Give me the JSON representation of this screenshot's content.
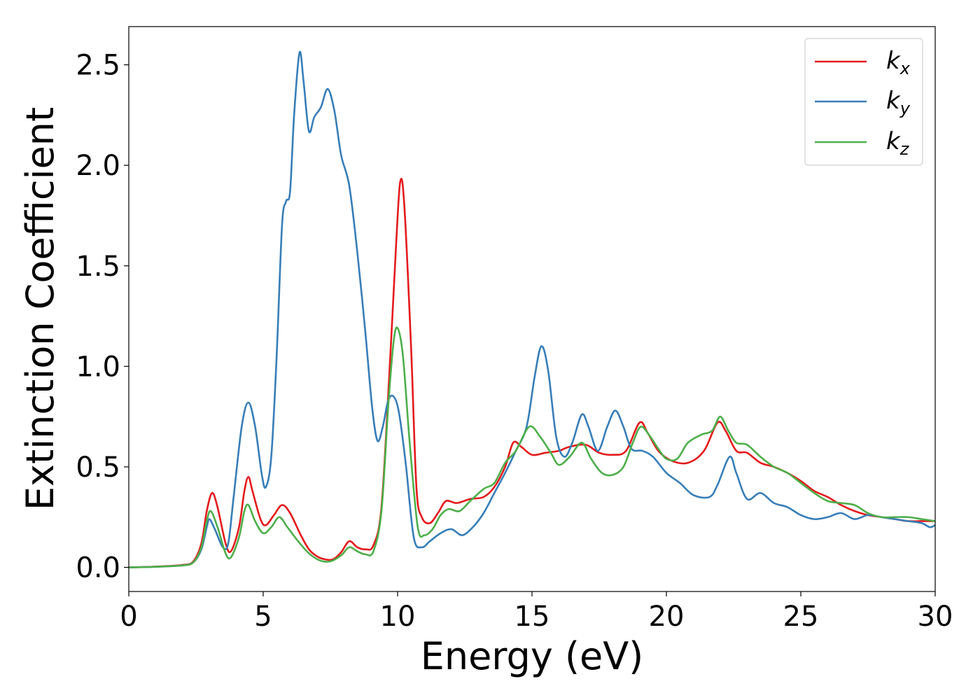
{
  "chart_data": {
    "type": "line",
    "title": "",
    "xlabel": "Energy (eV)",
    "ylabel": "Extinction Coefficient",
    "xlim": [
      0,
      30
    ],
    "ylim": [
      -0.12,
      2.69
    ],
    "xticks": [
      0,
      5,
      10,
      15,
      20,
      25,
      30
    ],
    "xtick_labels": [
      "0",
      "5",
      "10",
      "15",
      "20",
      "25",
      "30"
    ],
    "yticks": [
      0.0,
      0.5,
      1.0,
      1.5,
      2.0,
      2.5
    ],
    "ytick_labels": [
      "0.0",
      "0.5",
      "1.0",
      "1.5",
      "2.0",
      "2.5"
    ],
    "grid": false,
    "legend_position": "top-right",
    "series": [
      {
        "name": "k_x",
        "label_main": "k",
        "label_sub": "x",
        "color": "#e41a1c",
        "points": [
          [
            0,
            0.0
          ],
          [
            1,
            0.004
          ],
          [
            2,
            0.012
          ],
          [
            2.4,
            0.03
          ],
          [
            2.7,
            0.12
          ],
          [
            2.9,
            0.28
          ],
          [
            3.1,
            0.37
          ],
          [
            3.3,
            0.3
          ],
          [
            3.6,
            0.12
          ],
          [
            3.8,
            0.08
          ],
          [
            4.1,
            0.2
          ],
          [
            4.3,
            0.38
          ],
          [
            4.45,
            0.45
          ],
          [
            4.6,
            0.38
          ],
          [
            4.9,
            0.24
          ],
          [
            5.1,
            0.21
          ],
          [
            5.4,
            0.26
          ],
          [
            5.7,
            0.31
          ],
          [
            6.0,
            0.27
          ],
          [
            6.4,
            0.16
          ],
          [
            6.7,
            0.09
          ],
          [
            7.0,
            0.055
          ],
          [
            7.3,
            0.04
          ],
          [
            7.6,
            0.04
          ],
          [
            7.9,
            0.075
          ],
          [
            8.2,
            0.13
          ],
          [
            8.5,
            0.1
          ],
          [
            8.8,
            0.09
          ],
          [
            9.1,
            0.11
          ],
          [
            9.4,
            0.3
          ],
          [
            9.7,
            0.98
          ],
          [
            9.95,
            1.62
          ],
          [
            10.1,
            1.92
          ],
          [
            10.25,
            1.8
          ],
          [
            10.5,
            1.1
          ],
          [
            10.7,
            0.4
          ],
          [
            10.9,
            0.25
          ],
          [
            11.2,
            0.22
          ],
          [
            11.5,
            0.27
          ],
          [
            11.8,
            0.33
          ],
          [
            12.2,
            0.32
          ],
          [
            12.7,
            0.34
          ],
          [
            13.2,
            0.35
          ],
          [
            13.6,
            0.4
          ],
          [
            14.0,
            0.5
          ],
          [
            14.3,
            0.62
          ],
          [
            14.6,
            0.6
          ],
          [
            15.0,
            0.56
          ],
          [
            15.5,
            0.57
          ],
          [
            16.0,
            0.58
          ],
          [
            16.4,
            0.6
          ],
          [
            17.0,
            0.61
          ],
          [
            17.5,
            0.57
          ],
          [
            18.0,
            0.56
          ],
          [
            18.5,
            0.58
          ],
          [
            19.0,
            0.72
          ],
          [
            19.3,
            0.67
          ],
          [
            19.7,
            0.58
          ],
          [
            20.2,
            0.53
          ],
          [
            20.8,
            0.52
          ],
          [
            21.4,
            0.58
          ],
          [
            21.9,
            0.72
          ],
          [
            22.2,
            0.68
          ],
          [
            22.6,
            0.58
          ],
          [
            23.0,
            0.57
          ],
          [
            23.5,
            0.52
          ],
          [
            24.0,
            0.5
          ],
          [
            24.5,
            0.47
          ],
          [
            25.0,
            0.43
          ],
          [
            25.5,
            0.38
          ],
          [
            26.0,
            0.35
          ],
          [
            26.5,
            0.31
          ],
          [
            27.0,
            0.28
          ],
          [
            27.5,
            0.26
          ],
          [
            28.0,
            0.25
          ],
          [
            28.5,
            0.24
          ],
          [
            29.0,
            0.23
          ],
          [
            29.5,
            0.23
          ],
          [
            30.0,
            0.23
          ]
        ]
      },
      {
        "name": "k_y",
        "label_main": "k",
        "label_sub": "y",
        "color": "#377eb8",
        "points": [
          [
            0,
            0.0
          ],
          [
            1,
            0.003
          ],
          [
            2,
            0.01
          ],
          [
            2.4,
            0.025
          ],
          [
            2.7,
            0.09
          ],
          [
            2.9,
            0.2
          ],
          [
            3.0,
            0.24
          ],
          [
            3.2,
            0.19
          ],
          [
            3.5,
            0.1
          ],
          [
            3.7,
            0.12
          ],
          [
            3.9,
            0.35
          ],
          [
            4.2,
            0.7
          ],
          [
            4.45,
            0.82
          ],
          [
            4.7,
            0.7
          ],
          [
            4.95,
            0.46
          ],
          [
            5.1,
            0.4
          ],
          [
            5.3,
            0.55
          ],
          [
            5.5,
            1.05
          ],
          [
            5.7,
            1.7
          ],
          [
            5.85,
            1.82
          ],
          [
            6.0,
            1.87
          ],
          [
            6.15,
            2.25
          ],
          [
            6.35,
            2.56
          ],
          [
            6.5,
            2.42
          ],
          [
            6.7,
            2.17
          ],
          [
            6.9,
            2.24
          ],
          [
            7.15,
            2.29
          ],
          [
            7.4,
            2.38
          ],
          [
            7.65,
            2.27
          ],
          [
            7.9,
            2.05
          ],
          [
            8.2,
            1.9
          ],
          [
            8.5,
            1.57
          ],
          [
            8.8,
            1.17
          ],
          [
            9.05,
            0.8
          ],
          [
            9.25,
            0.63
          ],
          [
            9.45,
            0.7
          ],
          [
            9.65,
            0.83
          ],
          [
            9.85,
            0.85
          ],
          [
            10.05,
            0.77
          ],
          [
            10.3,
            0.52
          ],
          [
            10.6,
            0.15
          ],
          [
            10.9,
            0.1
          ],
          [
            11.2,
            0.13
          ],
          [
            11.6,
            0.17
          ],
          [
            12.0,
            0.19
          ],
          [
            12.4,
            0.16
          ],
          [
            12.8,
            0.2
          ],
          [
            13.2,
            0.27
          ],
          [
            13.6,
            0.37
          ],
          [
            14.0,
            0.47
          ],
          [
            14.4,
            0.58
          ],
          [
            14.8,
            0.7
          ],
          [
            15.1,
            0.95
          ],
          [
            15.35,
            1.1
          ],
          [
            15.6,
            0.98
          ],
          [
            15.9,
            0.65
          ],
          [
            16.2,
            0.55
          ],
          [
            16.5,
            0.62
          ],
          [
            16.85,
            0.76
          ],
          [
            17.1,
            0.7
          ],
          [
            17.45,
            0.58
          ],
          [
            17.8,
            0.7
          ],
          [
            18.1,
            0.78
          ],
          [
            18.4,
            0.7
          ],
          [
            18.7,
            0.59
          ],
          [
            19.1,
            0.58
          ],
          [
            19.5,
            0.55
          ],
          [
            20.0,
            0.47
          ],
          [
            20.5,
            0.42
          ],
          [
            21.0,
            0.36
          ],
          [
            21.6,
            0.35
          ],
          [
            21.9,
            0.41
          ],
          [
            22.35,
            0.55
          ],
          [
            22.6,
            0.47
          ],
          [
            23.0,
            0.34
          ],
          [
            23.5,
            0.37
          ],
          [
            24.0,
            0.32
          ],
          [
            24.5,
            0.3
          ],
          [
            25.0,
            0.26
          ],
          [
            25.5,
            0.24
          ],
          [
            26.0,
            0.25
          ],
          [
            26.5,
            0.27
          ],
          [
            27.0,
            0.24
          ],
          [
            27.5,
            0.26
          ],
          [
            28.0,
            0.25
          ],
          [
            28.5,
            0.24
          ],
          [
            29.0,
            0.23
          ],
          [
            29.5,
            0.22
          ],
          [
            29.8,
            0.2
          ],
          [
            30.0,
            0.21
          ]
        ]
      },
      {
        "name": "k_z",
        "label_main": "k",
        "label_sub": "z",
        "color": "#4daf4a",
        "points": [
          [
            0,
            0.0
          ],
          [
            1,
            0.003
          ],
          [
            2,
            0.01
          ],
          [
            2.4,
            0.025
          ],
          [
            2.7,
            0.1
          ],
          [
            2.9,
            0.23
          ],
          [
            3.05,
            0.28
          ],
          [
            3.3,
            0.2
          ],
          [
            3.6,
            0.07
          ],
          [
            3.8,
            0.05
          ],
          [
            4.1,
            0.15
          ],
          [
            4.3,
            0.28
          ],
          [
            4.45,
            0.31
          ],
          [
            4.7,
            0.23
          ],
          [
            5.0,
            0.17
          ],
          [
            5.3,
            0.2
          ],
          [
            5.6,
            0.25
          ],
          [
            5.9,
            0.2
          ],
          [
            6.3,
            0.13
          ],
          [
            6.7,
            0.07
          ],
          [
            7.1,
            0.035
          ],
          [
            7.5,
            0.03
          ],
          [
            7.9,
            0.06
          ],
          [
            8.2,
            0.1
          ],
          [
            8.5,
            0.08
          ],
          [
            8.8,
            0.065
          ],
          [
            9.1,
            0.08
          ],
          [
            9.4,
            0.28
          ],
          [
            9.65,
            0.8
          ],
          [
            9.85,
            1.12
          ],
          [
            10.0,
            1.19
          ],
          [
            10.2,
            1.05
          ],
          [
            10.45,
            0.62
          ],
          [
            10.75,
            0.2
          ],
          [
            11.0,
            0.16
          ],
          [
            11.3,
            0.19
          ],
          [
            11.6,
            0.26
          ],
          [
            11.9,
            0.29
          ],
          [
            12.3,
            0.28
          ],
          [
            12.7,
            0.33
          ],
          [
            13.2,
            0.39
          ],
          [
            13.6,
            0.42
          ],
          [
            14.0,
            0.52
          ],
          [
            14.4,
            0.58
          ],
          [
            14.9,
            0.7
          ],
          [
            15.3,
            0.65
          ],
          [
            15.7,
            0.57
          ],
          [
            16.0,
            0.51
          ],
          [
            16.4,
            0.55
          ],
          [
            16.85,
            0.62
          ],
          [
            17.2,
            0.54
          ],
          [
            17.6,
            0.47
          ],
          [
            18.0,
            0.46
          ],
          [
            18.4,
            0.5
          ],
          [
            18.75,
            0.62
          ],
          [
            19.05,
            0.7
          ],
          [
            19.4,
            0.65
          ],
          [
            19.7,
            0.59
          ],
          [
            20.0,
            0.54
          ],
          [
            20.4,
            0.54
          ],
          [
            20.8,
            0.62
          ],
          [
            21.3,
            0.66
          ],
          [
            21.7,
            0.68
          ],
          [
            22.0,
            0.75
          ],
          [
            22.3,
            0.68
          ],
          [
            22.6,
            0.62
          ],
          [
            23.0,
            0.61
          ],
          [
            23.5,
            0.55
          ],
          [
            24.0,
            0.5
          ],
          [
            24.5,
            0.47
          ],
          [
            25.0,
            0.42
          ],
          [
            25.5,
            0.37
          ],
          [
            26.0,
            0.33
          ],
          [
            26.5,
            0.32
          ],
          [
            27.0,
            0.31
          ],
          [
            27.5,
            0.27
          ],
          [
            28.0,
            0.25
          ],
          [
            28.5,
            0.25
          ],
          [
            29.0,
            0.25
          ],
          [
            29.5,
            0.24
          ],
          [
            30.0,
            0.23
          ]
        ]
      }
    ]
  }
}
